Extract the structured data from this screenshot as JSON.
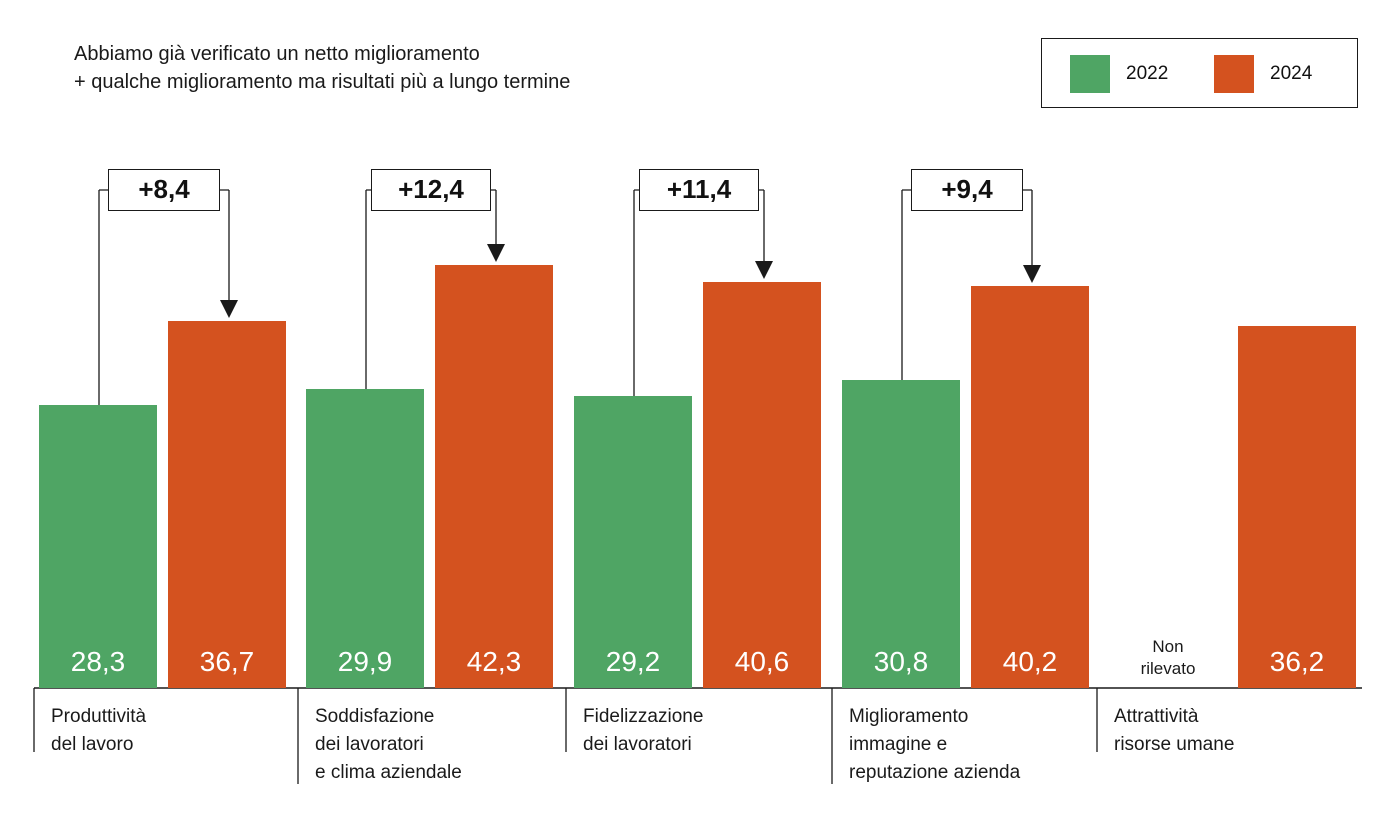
{
  "chart_data": {
    "type": "bar",
    "subtitle_lines": [
      "Abbiamo già verificato un netto miglioramento",
      "+ qualche miglioramento ma risultati più a lungo termine"
    ],
    "categories": [
      {
        "lines": [
          "Produttività",
          "del lavoro"
        ]
      },
      {
        "lines": [
          "Soddisfazione",
          "dei lavoratori",
          "e clima aziendale"
        ]
      },
      {
        "lines": [
          "Fidelizzazione",
          "dei lavoratori"
        ]
      },
      {
        "lines": [
          "Miglioramento",
          "immagine e",
          "reputazione azienda"
        ]
      },
      {
        "lines": [
          "Attrattività",
          "risorse umane"
        ]
      }
    ],
    "series": [
      {
        "name": "2022",
        "color": "#4fa564",
        "values": [
          28.3,
          29.9,
          29.2,
          30.8,
          null
        ],
        "labels": [
          "28,3",
          "29,9",
          "29,2",
          "30,8",
          ""
        ]
      },
      {
        "name": "2024",
        "color": "#d4521f",
        "values": [
          36.7,
          42.3,
          40.6,
          40.2,
          36.2
        ],
        "labels": [
          "36,7",
          "42,3",
          "40,6",
          "40,2",
          "36,2"
        ]
      }
    ],
    "differences": [
      "+8,4",
      "+12,4",
      "+11,4",
      "+9,4",
      ""
    ],
    "not_surveyed_lines": [
      "Non",
      "rilevato"
    ],
    "ylim": [
      0,
      60
    ],
    "grid": false,
    "legend_position": "top-right"
  }
}
